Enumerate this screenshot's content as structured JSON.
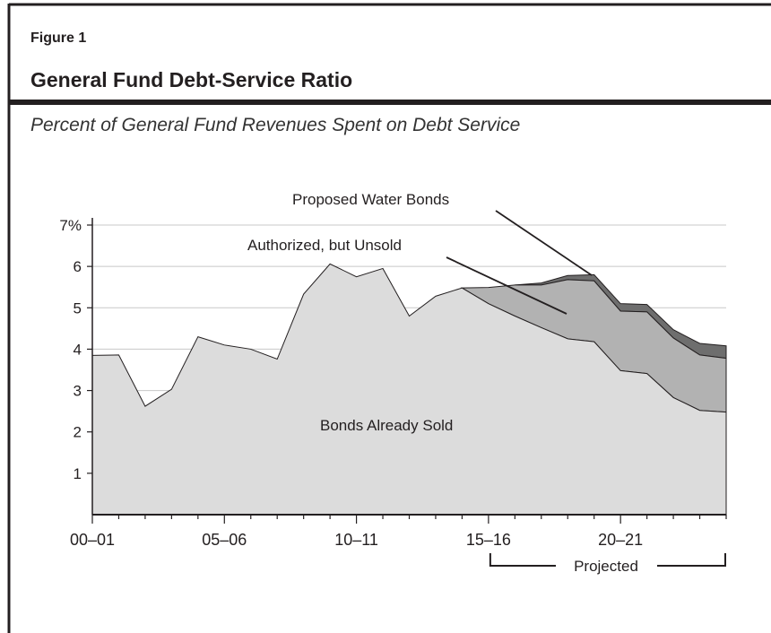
{
  "figure": {
    "label": "Figure 1",
    "title": "General Fund Debt-Service Ratio",
    "subtitle": "Percent of General Fund Revenues Spent on Debt Service"
  },
  "colors": {
    "already_sold": "#dcdcdc",
    "authorized_unsold": "#b2b2b2",
    "proposed_water": "#6e6e6e",
    "rule": "#231f20",
    "grid": "#c8c8c8"
  },
  "chart_data": {
    "type": "area",
    "stacked": true,
    "x_labels": [
      "00–01",
      "05–06",
      "10–11",
      "15–16",
      "20–21"
    ],
    "x_label_positions": [
      0,
      5,
      10,
      15,
      20
    ],
    "x_range": [
      0,
      24
    ],
    "ylim": [
      0,
      7
    ],
    "y_ticks": [
      1,
      2,
      3,
      4,
      5,
      6,
      7
    ],
    "y_tick_labels": [
      "1",
      "2",
      "3",
      "4",
      "5",
      "6",
      "7%"
    ],
    "grid": true,
    "series": [
      {
        "name": "Bonds Already Sold",
        "x": [
          0,
          1,
          2,
          3,
          4,
          5,
          6,
          7,
          8,
          9,
          10,
          11,
          12,
          13,
          14,
          15,
          16,
          17,
          18,
          19,
          20,
          21,
          22,
          23,
          24
        ],
        "values": [
          3.85,
          3.86,
          2.62,
          3.03,
          4.3,
          4.1,
          4.0,
          3.76,
          5.33,
          6.06,
          5.75,
          5.95,
          4.8,
          5.28,
          5.48,
          5.1,
          4.8,
          4.52,
          4.25,
          4.18,
          3.48,
          3.41,
          2.83,
          2.52,
          2.48
        ]
      },
      {
        "name": "Authorized, but Unsold",
        "x": [
          14,
          15,
          16,
          17,
          18,
          19,
          20,
          21,
          22,
          23,
          24
        ],
        "values": [
          0,
          0.39,
          0.75,
          1.03,
          1.43,
          1.47,
          1.44,
          1.49,
          1.44,
          1.34,
          1.3
        ]
      },
      {
        "name": "Proposed Water Bonds",
        "x": [
          16,
          17,
          18,
          19,
          20,
          21,
          22,
          23,
          24
        ],
        "values": [
          0,
          0.05,
          0.1,
          0.15,
          0.18,
          0.18,
          0.2,
          0.28,
          0.3
        ]
      }
    ],
    "annotations": [
      {
        "text": "Proposed Water Bonds"
      },
      {
        "text": "Authorized, but Unsold"
      },
      {
        "text": "Bonds Already Sold"
      }
    ],
    "projected_label": "Projected",
    "projected_range": [
      15,
      24
    ]
  }
}
